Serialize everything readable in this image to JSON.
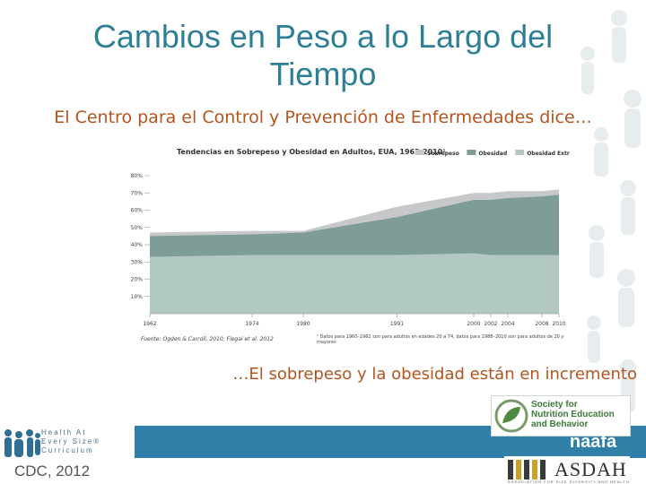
{
  "slide": {
    "title": "Cambios en Peso a lo Largo del Tiempo",
    "subtitle": "El Centro para el Control y Prevención de Enfermedades dice…",
    "caption": "…El sobrepeso y la obesidad están en incremento"
  },
  "chart_data": {
    "type": "area",
    "title": "Tendencias en Sobrepeso y Obesidad en Adultos, EUA, 1962-2010¹",
    "x": [
      "1962",
      "1974",
      "1980",
      "1991",
      "2000",
      "2002",
      "2004",
      "2008",
      "2010"
    ],
    "ylim": [
      0,
      80
    ],
    "yticks": [
      "80%",
      "70%",
      "60%",
      "50%",
      "40%",
      "30%",
      "20%",
      "10%"
    ],
    "stacking": "overlay",
    "series": [
      {
        "name": "Sobrepeso",
        "values": [
          47,
          48,
          48,
          62,
          70,
          70,
          71,
          71,
          72
        ],
        "color": "#c6c8ca"
      },
      {
        "name": "Obesidad",
        "values": [
          45,
          46,
          47,
          56,
          66,
          66,
          67,
          68,
          69
        ],
        "color": "#7f9d98"
      },
      {
        "name": "Obesidad Extrema",
        "values": [
          33,
          34,
          34,
          34,
          35,
          34,
          34,
          34,
          34
        ],
        "color": "#b2c9c3"
      }
    ],
    "source": "Fuente: Ogden & Carroll, 2010; Flegal et al. 2012",
    "footnote": "¹ Datos para 1960–1962 son para adultos en edades 20 a 74, datos para 1988–2010 son para adultos de 20 y mayores",
    "legend_position": "top-right"
  },
  "logos": {
    "haes_lines": [
      "Health At",
      "Every Size®",
      "Curriculum"
    ],
    "cdc": "CDC, 2012",
    "snebb_lines": [
      "Society for",
      "Nutrition Education",
      "and Behavior"
    ],
    "naafa": "naafa",
    "asdah": "ASDAH",
    "asdah_sub": "ASSOCIATION FOR SIZE DIVERSITY AND HEALTH"
  },
  "colors": {
    "title": "#2e7e95",
    "accent_text": "#b3541e",
    "band": "#2f7fa8"
  }
}
